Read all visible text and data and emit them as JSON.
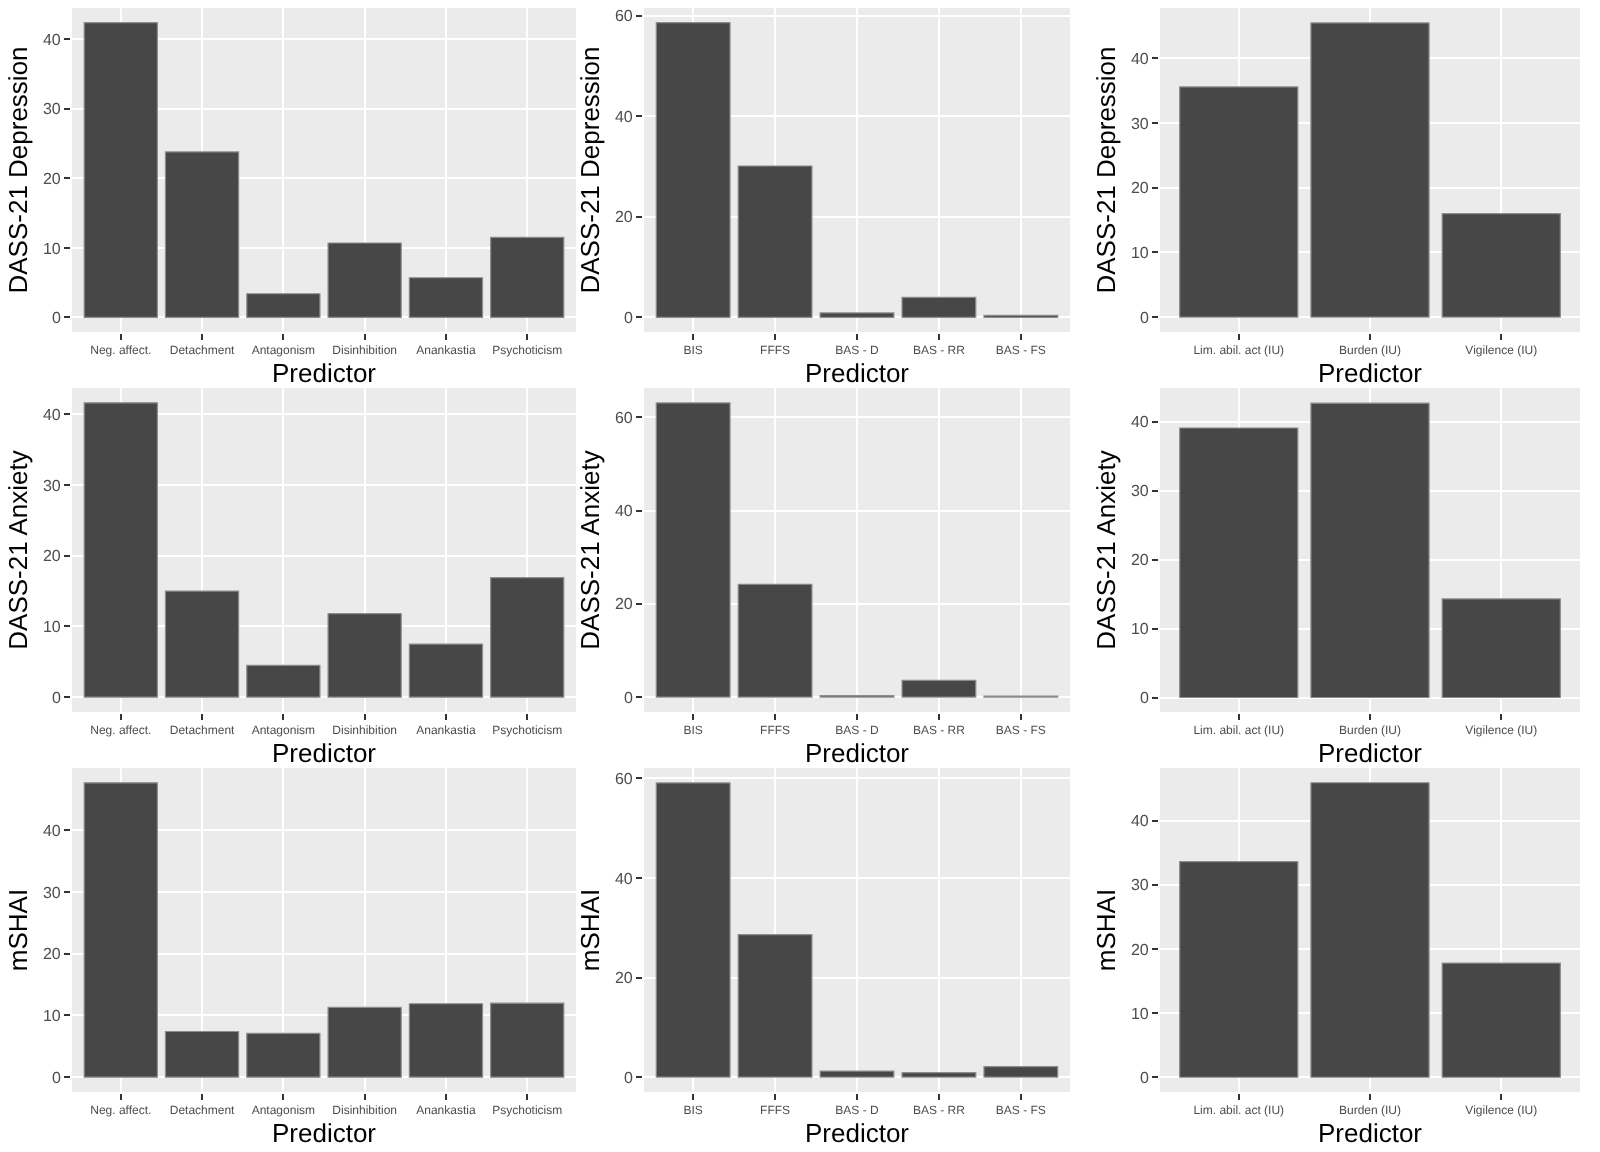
{
  "chart_data": [
    {
      "type": "bar",
      "xlabel": "Predictor",
      "ylabel": "DASS-21 Depression",
      "categories": [
        "Neg. affect.",
        "Detachment",
        "Antagonism",
        "Disinhibition",
        "Anankastia",
        "Psychoticism"
      ],
      "values": [
        42.4,
        23.8,
        3.4,
        10.7,
        5.7,
        11.5
      ],
      "color": "#474747",
      "ylim": [
        -2.1,
        44.5
      ],
      "yticks": [
        0,
        10,
        20,
        30,
        40
      ],
      "grid": true
    },
    {
      "type": "bar",
      "xlabel": "Predictor",
      "ylabel": "DASS-21 Depression",
      "categories": [
        "BIS",
        "FFFS",
        "BAS - D",
        "BAS - RR",
        "BAS - FS"
      ],
      "values": [
        58.6,
        30.1,
        0.9,
        4.0,
        0.4
      ],
      "color": "#474747",
      "ylim": [
        -2.9,
        61.5
      ],
      "yticks": [
        0,
        20,
        40,
        60
      ],
      "grid": true
    },
    {
      "type": "bar",
      "xlabel": "Predictor",
      "ylabel": "DASS-21 Depression",
      "categories": [
        "Lim. abil. act (IU)",
        "Burden (IU)",
        "Vigilence (IU)"
      ],
      "values": [
        35.6,
        45.5,
        16.0
      ],
      "color": "#474747",
      "ylim": [
        -2.3,
        47.8
      ],
      "yticks": [
        0,
        10,
        20,
        30,
        40
      ],
      "grid": true
    },
    {
      "type": "bar",
      "xlabel": "Predictor",
      "ylabel": "DASS-21 Anxiety",
      "categories": [
        "Neg. affect.",
        "Detachment",
        "Antagonism",
        "Disinhibition",
        "Anankastia",
        "Psychoticism"
      ],
      "values": [
        41.6,
        15.0,
        4.5,
        11.8,
        7.5,
        16.9
      ],
      "color": "#474747",
      "ylim": [
        -2.1,
        43.7
      ],
      "yticks": [
        0,
        10,
        20,
        30,
        40
      ],
      "grid": true
    },
    {
      "type": "bar",
      "xlabel": "Predictor",
      "ylabel": "DASS-21 Anxiety",
      "categories": [
        "BIS",
        "FFFS",
        "BAS - D",
        "BAS - RR",
        "BAS - FS"
      ],
      "values": [
        63.1,
        24.2,
        0.3,
        3.6,
        0.2
      ],
      "color": "#474747",
      "ylim": [
        -3.2,
        66.3
      ],
      "yticks": [
        0,
        20,
        40,
        60
      ],
      "grid": true
    },
    {
      "type": "bar",
      "xlabel": "Predictor",
      "ylabel": "DASS-21 Anxiety",
      "categories": [
        "Lim. abil. act (IU)",
        "Burden (IU)",
        "Vigilence (IU)"
      ],
      "values": [
        39.1,
        42.7,
        14.3
      ],
      "color": "#474747",
      "ylim": [
        -2.1,
        44.9
      ],
      "yticks": [
        0,
        10,
        20,
        30,
        40
      ],
      "grid": true
    },
    {
      "type": "bar",
      "xlabel": "Predictor",
      "ylabel": "mSHAI",
      "categories": [
        "Neg. affect.",
        "Detachment",
        "Antagonism",
        "Disinhibition",
        "Anankastia",
        "Psychoticism"
      ],
      "values": [
        47.7,
        7.4,
        7.1,
        11.3,
        11.9,
        12.0
      ],
      "color": "#474747",
      "ylim": [
        -2.4,
        50.1
      ],
      "yticks": [
        0,
        10,
        20,
        30,
        40
      ],
      "grid": true
    },
    {
      "type": "bar",
      "xlabel": "Predictor",
      "ylabel": "mSHAI",
      "categories": [
        "BIS",
        "FFFS",
        "BAS - D",
        "BAS - RR",
        "BAS - FS"
      ],
      "values": [
        59.1,
        28.6,
        1.2,
        0.9,
        2.1
      ],
      "color": "#474747",
      "ylim": [
        -3.0,
        62.1
      ],
      "yticks": [
        0,
        20,
        40,
        60
      ],
      "grid": true
    },
    {
      "type": "bar",
      "xlabel": "Predictor",
      "ylabel": "mSHAI",
      "categories": [
        "Lim. abil. act (IU)",
        "Burden (IU)",
        "Vigilence (IU)"
      ],
      "values": [
        33.6,
        45.9,
        17.8
      ],
      "color": "#474747",
      "ylim": [
        -2.3,
        48.2
      ],
      "yticks": [
        0,
        10,
        20,
        30,
        40
      ],
      "grid": true
    }
  ]
}
